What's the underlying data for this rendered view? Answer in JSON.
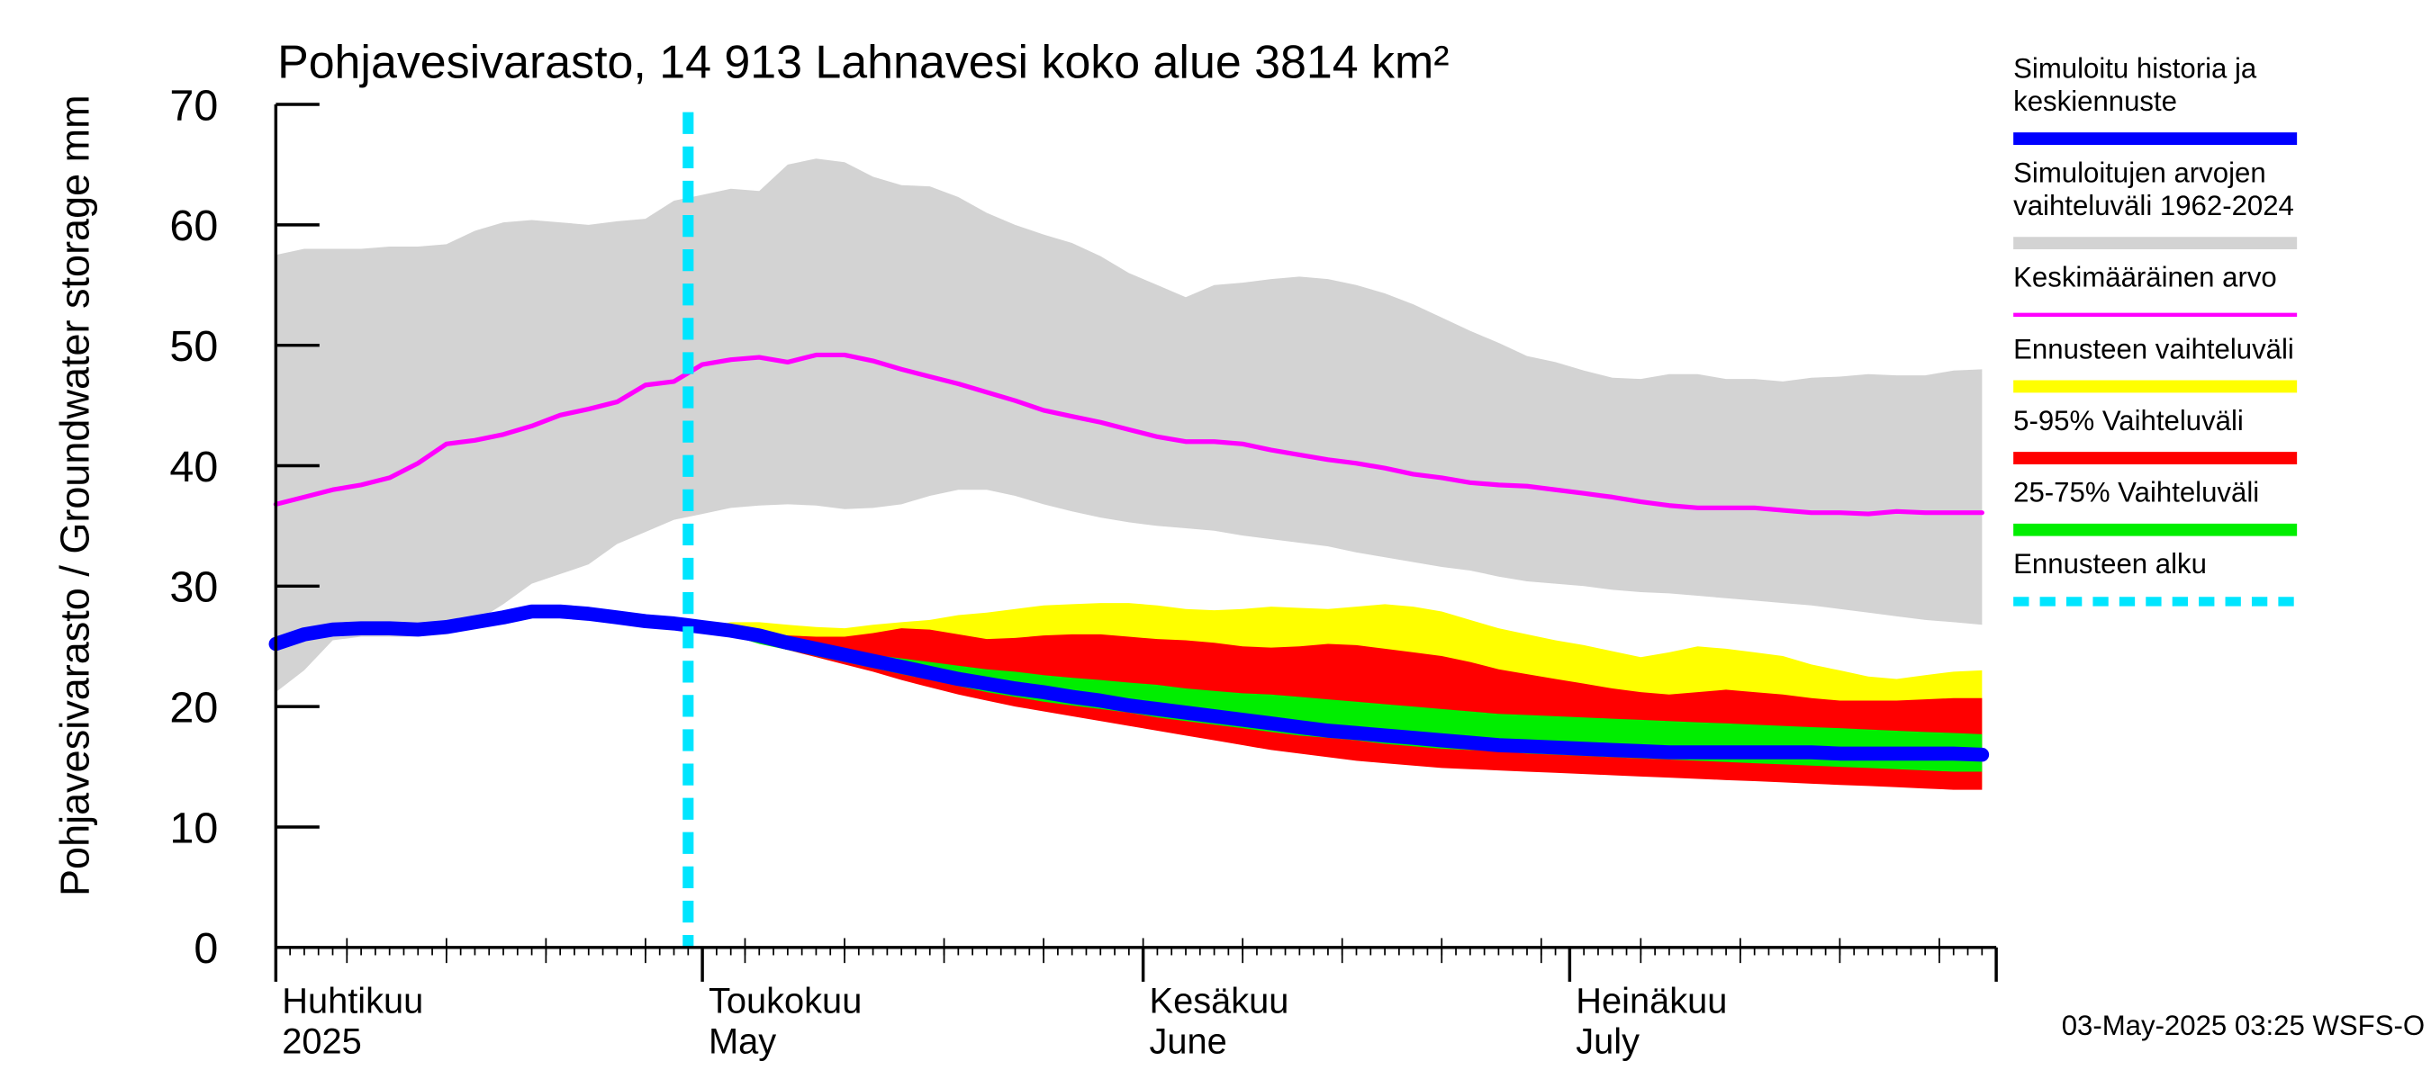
{
  "chart_data": {
    "type": "area",
    "title": "Pohjavesivarasto, 14 913 Lahnavesi koko alue 3814 km²",
    "ylabel": "Pohjavesivarasto / Groundwater storage   mm",
    "ylim": [
      0,
      70
    ],
    "yticks": [
      0,
      10,
      20,
      30,
      40,
      50,
      60,
      70
    ],
    "x_start": "2025-04-01",
    "x_end": "2025-07-31",
    "forecast_start_day": 29,
    "month_ticks": [
      {
        "day": 0,
        "label1": "Huhtikuu",
        "label2": "2025"
      },
      {
        "day": 30,
        "label1": "Toukokuu",
        "label2": "May"
      },
      {
        "day": 61,
        "label1": "Kesäkuu",
        "label2": "June"
      },
      {
        "day": 91,
        "label1": "Heinäkuu",
        "label2": "July"
      }
    ],
    "series": [
      {
        "name": "Simuloitujen arvojen vaihteluväli 1962-2024",
        "color": "#d3d3d3",
        "kind": "band",
        "x": [
          0,
          2,
          4,
          6,
          8,
          10,
          12,
          14,
          16,
          18,
          20,
          22,
          24,
          26,
          28,
          30,
          32,
          34,
          36,
          38,
          40,
          42,
          44,
          46,
          48,
          50,
          52,
          54,
          56,
          58,
          60,
          62,
          64,
          66,
          68,
          70,
          72,
          74,
          76,
          78,
          80,
          82,
          84,
          86,
          88,
          90,
          92,
          94,
          96,
          98,
          100,
          102,
          104,
          106,
          108,
          110,
          112,
          114,
          116,
          118,
          120
        ],
        "upper": [
          57.5,
          58,
          58,
          58,
          58.2,
          58.2,
          58.4,
          59.5,
          60.2,
          60.4,
          60.2,
          60,
          60.3,
          60.5,
          62,
          62.5,
          63,
          62.8,
          65,
          65.5,
          65.2,
          64,
          63.3,
          63.2,
          62.3,
          61,
          60,
          59.2,
          58.5,
          57.4,
          56,
          55,
          54,
          55,
          55.2,
          55.5,
          55.7,
          55.5,
          55,
          54.3,
          53.4,
          52.3,
          51.2,
          50.2,
          49.1,
          48.6,
          47.9,
          47.3,
          47.2,
          47.6,
          47.6,
          47.2,
          47.2,
          47,
          47.3,
          47.4,
          47.6,
          47.5,
          47.5,
          47.9,
          48
        ],
        "lower": [
          21.2,
          23,
          25.5,
          25.8,
          25.8,
          25.8,
          26,
          27,
          28.5,
          30.2,
          31,
          31.8,
          33.5,
          34.5,
          35.5,
          36,
          36.5,
          36.7,
          36.8,
          36.7,
          36.4,
          36.5,
          36.8,
          37.5,
          38,
          38,
          37.5,
          36.8,
          36.2,
          35.7,
          35.3,
          35,
          34.8,
          34.6,
          34.2,
          33.9,
          33.6,
          33.3,
          32.8,
          32.4,
          32,
          31.6,
          31.3,
          30.8,
          30.4,
          30.2,
          30,
          29.7,
          29.5,
          29.4,
          29.2,
          29,
          28.8,
          28.6,
          28.4,
          28.1,
          27.8,
          27.5,
          27.2,
          27,
          26.8
        ]
      },
      {
        "name": "Ennusteen vaihteluväli",
        "color": "#ffff00",
        "kind": "band",
        "x": [
          30,
          32,
          34,
          36,
          38,
          40,
          42,
          44,
          46,
          48,
          50,
          52,
          54,
          56,
          58,
          60,
          62,
          64,
          66,
          68,
          70,
          72,
          74,
          76,
          78,
          80,
          82,
          84,
          86,
          88,
          90,
          92,
          94,
          96,
          98,
          100,
          102,
          104,
          106,
          108,
          110,
          112,
          114,
          116,
          118,
          120
        ],
        "upper": [
          26.5,
          27,
          27,
          26.8,
          26.6,
          26.5,
          26.8,
          27,
          27.2,
          27.6,
          27.8,
          28.1,
          28.4,
          28.5,
          28.6,
          28.6,
          28.4,
          28.1,
          28,
          28.1,
          28.3,
          28.2,
          28.1,
          28.3,
          28.5,
          28.3,
          27.9,
          27.2,
          26.5,
          26,
          25.5,
          25.1,
          24.6,
          24.1,
          24.5,
          25,
          24.8,
          24.5,
          24.2,
          23.5,
          23,
          22.5,
          22.3,
          22.6,
          22.9,
          23
        ],
        "lower": [
          26.4,
          26,
          25.4,
          24.8,
          24.2,
          23.6,
          23,
          22.4,
          21.8,
          21.2,
          20.7,
          20.2,
          19.8,
          19.4,
          19,
          18.6,
          18.2,
          17.8,
          17.4,
          17,
          16.6,
          16.3,
          16,
          15.7,
          15.5,
          15.3,
          15.1,
          15,
          14.9,
          14.8,
          14.7,
          14.6,
          14.5,
          14.4,
          14.3,
          14.2,
          14.1,
          14,
          13.9,
          13.8,
          13.7,
          13.6,
          13.5,
          13.4,
          13.3,
          13.3
        ]
      },
      {
        "name": "5-95% Vaihteluväli",
        "color": "#ff0000",
        "kind": "band",
        "x": [
          30,
          32,
          34,
          36,
          38,
          40,
          42,
          44,
          46,
          48,
          50,
          52,
          54,
          56,
          58,
          60,
          62,
          64,
          66,
          68,
          70,
          72,
          74,
          76,
          78,
          80,
          82,
          84,
          86,
          88,
          90,
          92,
          94,
          96,
          98,
          100,
          102,
          104,
          106,
          108,
          110,
          112,
          114,
          116,
          118,
          120
        ],
        "upper": [
          26.4,
          26.3,
          26.1,
          25.9,
          25.8,
          25.8,
          26.1,
          26.5,
          26.4,
          26,
          25.6,
          25.7,
          25.9,
          26,
          26,
          25.8,
          25.6,
          25.5,
          25.3,
          25,
          24.9,
          25,
          25.2,
          25.1,
          24.8,
          24.5,
          24.2,
          23.7,
          23.1,
          22.7,
          22.3,
          21.9,
          21.5,
          21.2,
          21,
          21.2,
          21.4,
          21.2,
          21,
          20.7,
          20.5,
          20.5,
          20.5,
          20.6,
          20.7,
          20.7
        ],
        "lower": [
          26.4,
          26,
          25.3,
          24.7,
          24.1,
          23.5,
          22.9,
          22.2,
          21.6,
          21,
          20.5,
          20,
          19.6,
          19.2,
          18.8,
          18.4,
          18,
          17.6,
          17.2,
          16.8,
          16.4,
          16.1,
          15.8,
          15.5,
          15.3,
          15.1,
          14.9,
          14.8,
          14.7,
          14.6,
          14.5,
          14.4,
          14.3,
          14.2,
          14.1,
          14,
          13.9,
          13.8,
          13.7,
          13.6,
          13.5,
          13.4,
          13.3,
          13.2,
          13.1,
          13.1
        ]
      },
      {
        "name": "25-75% Vaihteluväli",
        "color": "#00ee00",
        "kind": "band",
        "x": [
          30,
          32,
          34,
          36,
          38,
          40,
          42,
          44,
          46,
          48,
          50,
          52,
          54,
          56,
          58,
          60,
          62,
          64,
          66,
          68,
          70,
          72,
          74,
          76,
          78,
          80,
          82,
          84,
          86,
          88,
          90,
          92,
          94,
          96,
          98,
          100,
          102,
          104,
          106,
          108,
          110,
          112,
          114,
          116,
          118,
          120
        ],
        "upper": [
          26.4,
          26.1,
          25.7,
          25.3,
          24.9,
          24.6,
          24.3,
          24,
          23.7,
          23.4,
          23.1,
          22.9,
          22.6,
          22.4,
          22.2,
          22,
          21.8,
          21.5,
          21.3,
          21.1,
          21,
          20.8,
          20.6,
          20.4,
          20.2,
          20,
          19.8,
          19.6,
          19.4,
          19.3,
          19.2,
          19.1,
          19,
          18.9,
          18.8,
          18.7,
          18.6,
          18.5,
          18.4,
          18.3,
          18.2,
          18.1,
          18,
          17.9,
          17.8,
          17.7
        ],
        "lower": [
          26.4,
          25.9,
          25.2,
          24.7,
          24.2,
          23.7,
          23.2,
          22.7,
          22.2,
          21.7,
          21.2,
          20.8,
          20.4,
          20.1,
          19.8,
          19.5,
          19.1,
          18.8,
          18.5,
          18.2,
          17.9,
          17.6,
          17.4,
          17.2,
          16.9,
          16.7,
          16.5,
          16.4,
          16.3,
          16.1,
          16,
          15.9,
          15.8,
          15.7,
          15.6,
          15.5,
          15.4,
          15.3,
          15.2,
          15.1,
          15,
          14.9,
          14.8,
          14.7,
          14.6,
          14.6
        ]
      },
      {
        "name": "Keskimääräinen arvo",
        "color": "#ff00ff",
        "kind": "line",
        "x": [
          0,
          2,
          4,
          6,
          8,
          10,
          12,
          14,
          16,
          18,
          20,
          22,
          24,
          26,
          28,
          30,
          32,
          34,
          36,
          38,
          40,
          42,
          44,
          46,
          48,
          50,
          52,
          54,
          56,
          58,
          60,
          62,
          64,
          66,
          68,
          70,
          72,
          74,
          76,
          78,
          80,
          82,
          84,
          86,
          88,
          90,
          92,
          94,
          96,
          98,
          100,
          102,
          104,
          106,
          108,
          110,
          112,
          114,
          116,
          118,
          120
        ],
        "values": [
          36.8,
          37.4,
          38,
          38.4,
          39,
          40.2,
          41.8,
          42.1,
          42.6,
          43.3,
          44.2,
          44.7,
          45.3,
          46.7,
          47,
          48.4,
          48.8,
          49,
          48.6,
          49.2,
          49.2,
          48.7,
          48,
          47.4,
          46.8,
          46.1,
          45.4,
          44.6,
          44.1,
          43.6,
          43,
          42.4,
          42,
          42,
          41.8,
          41.3,
          40.9,
          40.5,
          40.2,
          39.8,
          39.3,
          39,
          38.6,
          38.4,
          38.3,
          38,
          37.7,
          37.4,
          37,
          36.7,
          36.5,
          36.5,
          36.5,
          36.3,
          36.1,
          36.1,
          36,
          36.2,
          36.1,
          36.1,
          36.1
        ]
      },
      {
        "name": "Simuloitu historia ja keskiennuste",
        "color": "#0000ff",
        "kind": "line",
        "x": [
          0,
          2,
          4,
          6,
          8,
          10,
          12,
          14,
          16,
          18,
          20,
          22,
          24,
          26,
          28,
          30,
          32,
          34,
          36,
          38,
          40,
          42,
          44,
          46,
          48,
          50,
          52,
          54,
          56,
          58,
          60,
          62,
          64,
          66,
          68,
          70,
          72,
          74,
          76,
          78,
          80,
          82,
          84,
          86,
          88,
          90,
          92,
          94,
          96,
          98,
          100,
          102,
          104,
          106,
          108,
          110,
          112,
          114,
          116,
          118,
          120
        ],
        "values": [
          25.2,
          26,
          26.4,
          26.5,
          26.5,
          26.4,
          26.6,
          27,
          27.4,
          27.9,
          27.9,
          27.7,
          27.4,
          27.1,
          26.9,
          26.6,
          26.3,
          25.9,
          25.3,
          24.8,
          24.3,
          23.8,
          23.3,
          22.8,
          22.3,
          21.9,
          21.5,
          21.2,
          20.8,
          20.5,
          20.1,
          19.8,
          19.5,
          19.2,
          18.9,
          18.6,
          18.3,
          18,
          17.8,
          17.6,
          17.4,
          17.2,
          17,
          16.8,
          16.7,
          16.6,
          16.5,
          16.4,
          16.3,
          16.2,
          16.2,
          16.2,
          16.2,
          16.2,
          16.2,
          16.1,
          16.1,
          16.1,
          16.1,
          16.1,
          16
        ]
      }
    ],
    "legend": [
      {
        "label_lines": [
          "Simuloitu historia ja",
          "keskiennuste"
        ],
        "color": "#0000ff",
        "style": "thick"
      },
      {
        "label_lines": [
          "Simuloitujen arvojen",
          "vaihteluväli 1962-2024"
        ],
        "color": "#d3d3d3",
        "style": "thick"
      },
      {
        "label_lines": [
          "Keskimääräinen arvo"
        ],
        "color": "#ff00ff",
        "style": "thin"
      },
      {
        "label_lines": [
          "Ennusteen vaihteluväli"
        ],
        "color": "#ffff00",
        "style": "thick"
      },
      {
        "label_lines": [
          "5-95% Vaihteluväli"
        ],
        "color": "#ff0000",
        "style": "thick"
      },
      {
        "label_lines": [
          "25-75% Vaihteluväli"
        ],
        "color": "#00ee00",
        "style": "thick"
      },
      {
        "label_lines": [
          "Ennusteen alku"
        ],
        "color": "#00e5ff",
        "style": "dashed"
      }
    ],
    "timestamp": "03-May-2025 03:25 WSFS-O"
  }
}
